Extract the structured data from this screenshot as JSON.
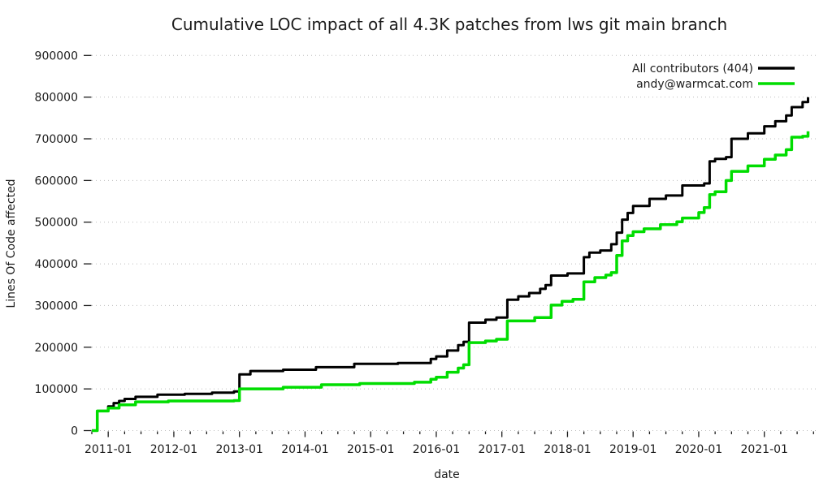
{
  "chart_data": {
    "type": "line",
    "title": "Cumulative LOC impact of all 4.3K patches from lws git main branch",
    "xlabel": "date",
    "ylabel": "Lines Of Code affected",
    "x_tick_labels": [
      "2011-01",
      "2012-01",
      "2013-01",
      "2014-01",
      "2015-01",
      "2016-01",
      "2017-01",
      "2018-01",
      "2019-01",
      "2020-01",
      "2021-01"
    ],
    "y_ticks": [
      0,
      100000,
      200000,
      300000,
      400000,
      500000,
      600000,
      700000,
      800000,
      900000
    ],
    "ylim": [
      0,
      900000
    ],
    "xlim": [
      "2010-10",
      "2021-11"
    ],
    "grid": "horizontal-dotted",
    "legend_position": "top-right-inside",
    "line_style": "step-after",
    "series": [
      {
        "name": "All contributors (404)",
        "color": "#000000",
        "points": [
          [
            "2010-10",
            0
          ],
          [
            "2010-11",
            47000
          ],
          [
            "2011-01",
            58000
          ],
          [
            "2011-02",
            66000
          ],
          [
            "2011-03",
            71000
          ],
          [
            "2011-04",
            76000
          ],
          [
            "2011-06",
            81000
          ],
          [
            "2011-10",
            86000
          ],
          [
            "2012-03",
            88000
          ],
          [
            "2012-08",
            91000
          ],
          [
            "2012-12",
            94000
          ],
          [
            "2013-01",
            135000
          ],
          [
            "2013-03",
            143000
          ],
          [
            "2013-09",
            146000
          ],
          [
            "2014-03",
            152000
          ],
          [
            "2014-10",
            160000
          ],
          [
            "2015-06",
            162000
          ],
          [
            "2015-12",
            172000
          ],
          [
            "2016-01",
            178000
          ],
          [
            "2016-03",
            192000
          ],
          [
            "2016-05",
            205000
          ],
          [
            "2016-06",
            213000
          ],
          [
            "2016-07",
            259000
          ],
          [
            "2016-10",
            266000
          ],
          [
            "2016-12",
            271000
          ],
          [
            "2017-02",
            314000
          ],
          [
            "2017-04",
            322000
          ],
          [
            "2017-06",
            330000
          ],
          [
            "2017-08",
            340000
          ],
          [
            "2017-09",
            349000
          ],
          [
            "2017-10",
            372000
          ],
          [
            "2018-01",
            377000
          ],
          [
            "2018-04",
            416000
          ],
          [
            "2018-05",
            427000
          ],
          [
            "2018-07",
            432000
          ],
          [
            "2018-09",
            447000
          ],
          [
            "2018-10",
            475000
          ],
          [
            "2018-11",
            506000
          ],
          [
            "2018-12",
            522000
          ],
          [
            "2019-01",
            539000
          ],
          [
            "2019-04",
            556000
          ],
          [
            "2019-07",
            564000
          ],
          [
            "2019-10",
            588000
          ],
          [
            "2020-02",
            593000
          ],
          [
            "2020-03",
            646000
          ],
          [
            "2020-04",
            652000
          ],
          [
            "2020-06",
            656000
          ],
          [
            "2020-07",
            700000
          ],
          [
            "2020-10",
            713000
          ],
          [
            "2021-01",
            730000
          ],
          [
            "2021-03",
            742000
          ],
          [
            "2021-05",
            756000
          ],
          [
            "2021-06",
            776000
          ],
          [
            "2021-08",
            788000
          ],
          [
            "2021-09",
            800000
          ]
        ]
      },
      {
        "name": "andy@warmcat.com",
        "color": "#00dd00",
        "points": [
          [
            "2010-10",
            0
          ],
          [
            "2010-11",
            47000
          ],
          [
            "2011-01",
            54000
          ],
          [
            "2011-03",
            62000
          ],
          [
            "2011-06",
            69000
          ],
          [
            "2011-12",
            71000
          ],
          [
            "2012-12",
            72000
          ],
          [
            "2013-01",
            100000
          ],
          [
            "2013-09",
            104000
          ],
          [
            "2014-04",
            110000
          ],
          [
            "2014-11",
            113000
          ],
          [
            "2015-09",
            116000
          ],
          [
            "2015-12",
            123000
          ],
          [
            "2016-01",
            128000
          ],
          [
            "2016-03",
            140000
          ],
          [
            "2016-05",
            150000
          ],
          [
            "2016-06",
            158000
          ],
          [
            "2016-07",
            211000
          ],
          [
            "2016-10",
            215000
          ],
          [
            "2016-12",
            219000
          ],
          [
            "2017-02",
            263000
          ],
          [
            "2017-07",
            271000
          ],
          [
            "2017-10",
            301000
          ],
          [
            "2017-12",
            310000
          ],
          [
            "2018-02",
            315000
          ],
          [
            "2018-04",
            357000
          ],
          [
            "2018-06",
            367000
          ],
          [
            "2018-08",
            373000
          ],
          [
            "2018-09",
            379000
          ],
          [
            "2018-10",
            420000
          ],
          [
            "2018-11",
            455000
          ],
          [
            "2018-12",
            468000
          ],
          [
            "2019-01",
            477000
          ],
          [
            "2019-03",
            484000
          ],
          [
            "2019-06",
            494000
          ],
          [
            "2019-09",
            501000
          ],
          [
            "2019-10",
            510000
          ],
          [
            "2020-01",
            523000
          ],
          [
            "2020-02",
            535000
          ],
          [
            "2020-03",
            566000
          ],
          [
            "2020-04",
            573000
          ],
          [
            "2020-06",
            600000
          ],
          [
            "2020-07",
            622000
          ],
          [
            "2020-10",
            635000
          ],
          [
            "2021-01",
            651000
          ],
          [
            "2021-03",
            661000
          ],
          [
            "2021-05",
            674000
          ],
          [
            "2021-06",
            704000
          ],
          [
            "2021-08",
            706000
          ],
          [
            "2021-09",
            718000
          ]
        ]
      }
    ]
  }
}
